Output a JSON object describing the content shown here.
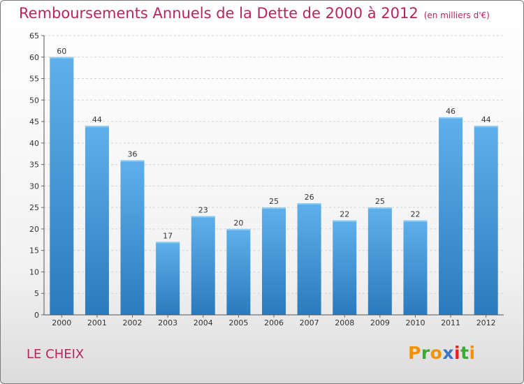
{
  "title": "Remboursements Annuels de la Dette de 2000 à 2012",
  "unit": "(en milliers d'€)",
  "commune": "LE CHEIX",
  "logo": {
    "letters": [
      "P",
      "r",
      "o",
      "x",
      "i",
      "t",
      "i"
    ],
    "colors": [
      "#f39200",
      "#3aa935",
      "#f39200",
      "#3b78c4",
      "#e2231a",
      "#3aa935",
      "#f39200"
    ]
  },
  "colors": {
    "bar_light": "#5dafe8",
    "bar_dark": "#2c7ec0",
    "title": "#b5265e"
  },
  "chart_data": {
    "type": "bar",
    "title": "Remboursements Annuels de la Dette de 2000 à 2012",
    "categories": [
      "2000",
      "2001",
      "2002",
      "2003",
      "2004",
      "2005",
      "2006",
      "2007",
      "2008",
      "2009",
      "2010",
      "2011",
      "2012"
    ],
    "values": [
      60,
      44,
      36,
      17,
      23,
      20,
      25,
      26,
      22,
      25,
      22,
      46,
      44
    ],
    "ylim": [
      0,
      65
    ],
    "yticks": [
      0,
      5,
      10,
      15,
      20,
      25,
      30,
      35,
      40,
      45,
      50,
      55,
      60,
      65
    ],
    "grid": true
  }
}
